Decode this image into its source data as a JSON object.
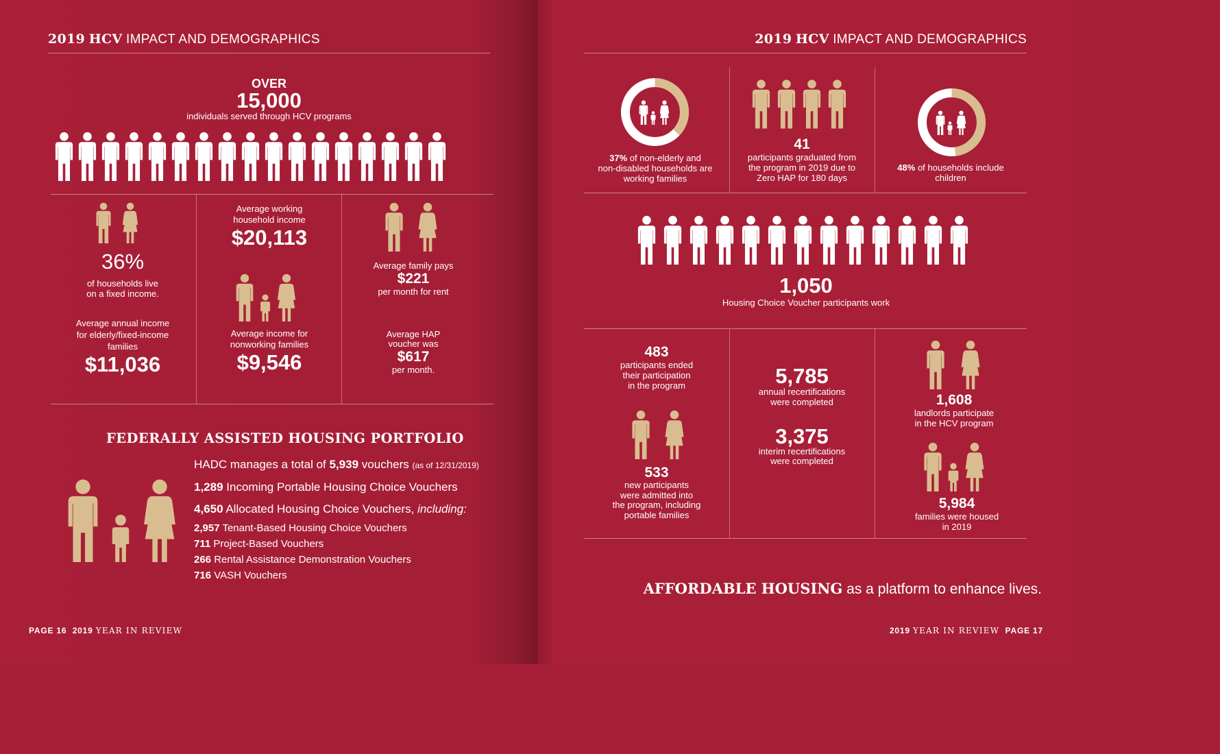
{
  "left": {
    "header": {
      "year": "2019",
      "hcv": "HCV",
      "rest": "IMPACT AND DEMOGRAPHICS"
    },
    "over": {
      "label": "OVER",
      "value": "15,000",
      "caption": "individuals served through HCV programs"
    },
    "stats": {
      "fixed_pct": {
        "value": "36%",
        "caption1": "of households live",
        "caption2": "on a fixed income."
      },
      "elderly_income": {
        "caption1": "Average annual income",
        "caption2": "for elderly/fixed-income",
        "caption3": "families",
        "value": "$11,036"
      },
      "working_income": {
        "caption1": "Average working",
        "caption2": "household income",
        "value": "$20,113"
      },
      "nonworking_income": {
        "caption1": "Average income for",
        "caption2": "nonworking families",
        "value": "$9,546"
      },
      "family_rent": {
        "caption1": "Average family pays",
        "value": "$221",
        "caption2": "per month for rent"
      },
      "hap": {
        "caption1": "Average HAP",
        "caption2": "voucher was",
        "value": "$617",
        "caption3": "per month."
      }
    },
    "portfolio": {
      "title": "FEDERALLY ASSISTED HOUSING PORTFOLIO",
      "line1": {
        "pre": "HADC manages a total of",
        "num": "5,939",
        "post": "vouchers",
        "note": "(as of 12/31/2019)"
      },
      "line2": {
        "num": "1,289",
        "text": "Incoming Portable Housing Choice Vouchers"
      },
      "line3": {
        "num": "4,650",
        "text": "Allocated Housing Choice Vouchers,",
        "ital": "including:"
      },
      "items": [
        {
          "num": "2,957",
          "text": "Tenant-Based Housing Choice Vouchers"
        },
        {
          "num": "711",
          "text": "Project-Based Vouchers"
        },
        {
          "num": "266",
          "text": "Rental Assistance Demonstration Vouchers"
        },
        {
          "num": "716",
          "text": "VASH Vouchers"
        }
      ]
    },
    "footer": {
      "page": "PAGE 16",
      "year": "2019",
      "review": "YEAR IN REVIEW"
    }
  },
  "right": {
    "header": {
      "year": "2019",
      "hcv": "HCV",
      "rest": "IMPACT AND DEMOGRAPHICS"
    },
    "working_families": {
      "pct": "37%",
      "line1": "of non-elderly and",
      "line2": "non-disabled households are",
      "line3": "working families",
      "fraction": 0.37
    },
    "graduated": {
      "value": "41",
      "line1": "participants graduated from",
      "line2": "the program in 2019 due to",
      "line3": "Zero HAP for 180 days"
    },
    "children": {
      "pct": "48%",
      "line1": "of households include",
      "line2": "children",
      "fraction": 0.48
    },
    "work": {
      "value": "1,050",
      "caption": "Housing Choice Voucher participants work"
    },
    "ended": {
      "value": "483",
      "line1": "participants ended",
      "line2": "their participation",
      "line3": "in the program"
    },
    "admitted": {
      "value": "533",
      "line1": "new participants",
      "line2": "were admitted into",
      "line3": "the program, including",
      "line4": "portable families"
    },
    "annual": {
      "value": "5,785",
      "line1": "annual recertifications",
      "line2": "were completed"
    },
    "interim": {
      "value": "3,375",
      "line1": "interim recertifications",
      "line2": "were completed"
    },
    "landlords": {
      "value": "1,608",
      "line1": "landlords participate",
      "line2": "in the HCV program"
    },
    "housed": {
      "value": "5,984",
      "line1": "families were housed",
      "line2": "in 2019"
    },
    "tagline": {
      "bold": "AFFORDABLE HOUSING",
      "rest": "as a platform to enhance lives."
    },
    "footer": {
      "year": "2019",
      "review": "YEAR IN REVIEW",
      "page": "PAGE 17"
    }
  },
  "colors": {
    "background": "#a81f37",
    "figure_tan": "#d9bd90",
    "white": "#ffffff"
  },
  "icons": {
    "person": "person-icon",
    "family": "family-icon",
    "couple": "couple-icon"
  }
}
